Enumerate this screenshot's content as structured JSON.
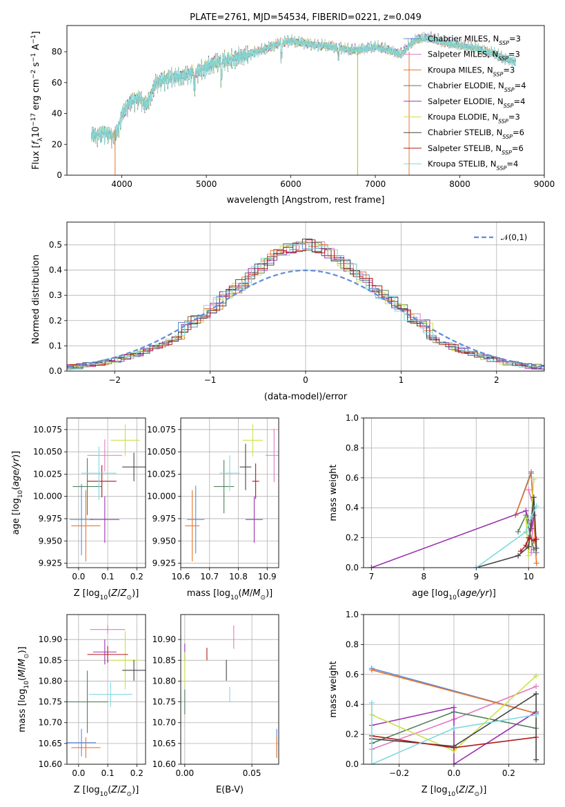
{
  "chart_data": [
    {
      "id": "spectrum",
      "type": "line",
      "title": "PLATE=2761, MJD=54534, FIBERID=0221, z=0.049",
      "xlabel": "wavelength [Angstrom, rest frame]",
      "ylabel": "Flux [f_λ10^-17 erg cm^-2 s^-1 A^-1]",
      "xlim": [
        3350,
        9000
      ],
      "ylim": [
        0,
        97
      ],
      "xticks": [
        4000,
        5000,
        6000,
        7000,
        8000,
        9000
      ],
      "yticks": [
        0,
        20,
        40,
        60,
        80
      ],
      "grid": false,
      "legend_position": "top-right",
      "continuum": {
        "x": [
          3640,
          3700,
          3800,
          3900,
          3960,
          4000,
          4100,
          4200,
          4300,
          4400,
          4500,
          4600,
          4700,
          4800,
          4900,
          5000,
          5100,
          5200,
          5300,
          5400,
          5500,
          5600,
          5700,
          5800,
          5900,
          6000,
          6100,
          6200,
          6300,
          6400,
          6500,
          6600,
          6700,
          6800,
          6900,
          7000,
          7100,
          7200,
          7300,
          7400,
          7500,
          7600,
          7700,
          7800,
          7900,
          8000,
          8100,
          8200,
          8300,
          8400,
          8500,
          8600,
          8660
        ],
        "y": [
          27,
          26,
          28,
          25,
          30,
          40,
          48,
          50,
          46,
          60,
          62,
          64,
          64,
          66,
          67,
          70,
          73,
          74,
          75,
          77,
          78,
          80,
          82,
          84,
          86,
          87,
          86,
          85,
          84,
          84,
          83,
          82,
          81,
          81,
          82,
          83,
          82,
          80,
          78,
          84,
          88,
          89,
          88,
          86,
          85,
          84,
          83,
          82,
          80,
          79,
          76,
          74,
          73
        ]
      },
      "series": [
        {
          "name": "Chabrier MILES, N_SSP=3",
          "color": "#5b8bd9"
        },
        {
          "name": "Salpeter MILES, N_SSP=3",
          "color": "#e377c2"
        },
        {
          "name": "Kroupa MILES, N_SSP=3",
          "color": "#e8742b"
        },
        {
          "name": "Chabrier ELODIE, N_SSP=4",
          "color": "#4f7f5a"
        },
        {
          "name": "Salpeter ELODIE, N_SSP=4",
          "color": "#9b30b0"
        },
        {
          "name": "Kroupa ELODIE, N_SSP=3",
          "color": "#cbe24a"
        },
        {
          "name": "Chabrier STELIB, N_SSP=6",
          "color": "#444444"
        },
        {
          "name": "Salpeter STELIB, N_SSP=6",
          "color": "#b01818"
        },
        {
          "name": "Kroupa STELIB, N_SSP=4",
          "color": "#7fd9df"
        }
      ]
    },
    {
      "id": "residuals",
      "type": "step",
      "xlabel": "(data-model)/error",
      "ylabel": "Normed distribution",
      "xlim": [
        -2.5,
        2.5
      ],
      "ylim": [
        0,
        0.59
      ],
      "xticks": [
        -2,
        -1,
        0,
        1,
        2
      ],
      "yticks": [
        0.0,
        0.1,
        0.2,
        0.3,
        0.4,
        0.5
      ],
      "grid": true,
      "legend_position": "top-right",
      "reference_label": "𝒩(0,1)",
      "reference_color": "#5b8bd9"
    },
    {
      "id": "age_vs_Z",
      "type": "errorbar",
      "xlabel": "Z [log10(Z/Z☉)]",
      "ylabel": "age  [log10(age/yr)]",
      "xlim": [
        -0.04,
        0.23
      ],
      "ylim": [
        9.92,
        10.088
      ],
      "xticks": [
        0.0,
        0.1,
        0.2
      ],
      "yticks": [
        9.925,
        9.95,
        9.975,
        10.0,
        10.025,
        10.05,
        10.075
      ],
      "grid": true,
      "points": [
        {
          "x": 0.01,
          "xerr": 0.04,
          "y": 9.974,
          "yerr": 0.04,
          "color": "#5b8bd9"
        },
        {
          "x": 0.09,
          "xerr": 0.06,
          "y": 10.046,
          "yerr": 0.018,
          "color": "#e377c2"
        },
        {
          "x": 0.025,
          "xerr": 0.05,
          "y": 9.967,
          "yerr": 0.04,
          "color": "#e8742b"
        },
        {
          "x": 0.03,
          "xerr": 0.05,
          "y": 10.011,
          "yerr": 0.032,
          "color": "#4f7f5a"
        },
        {
          "x": 0.09,
          "xerr": 0.05,
          "y": 9.974,
          "yerr": 0.026,
          "color": "#9b30b0"
        },
        {
          "x": 0.16,
          "xerr": 0.05,
          "y": 10.063,
          "yerr": 0.018,
          "color": "#cbe24a"
        },
        {
          "x": 0.19,
          "xerr": 0.04,
          "y": 10.033,
          "yerr": 0.016,
          "color": "#444444"
        },
        {
          "x": 0.08,
          "xerr": 0.05,
          "y": 10.017,
          "yerr": 0.018,
          "color": "#b01818"
        },
        {
          "x": 0.07,
          "xerr": 0.06,
          "y": 10.026,
          "yerr": 0.03,
          "color": "#7fd9df"
        }
      ]
    },
    {
      "id": "age_vs_mass",
      "type": "errorbar",
      "xlabel": "mass [log10(M/M☉)]",
      "ylabel": "",
      "xlim": [
        10.6,
        10.94
      ],
      "ylim": [
        9.92,
        10.088
      ],
      "xticks": [
        10.6,
        10.7,
        10.8,
        10.9
      ],
      "yticks": [
        9.925,
        9.95,
        9.975,
        10.0,
        10.025,
        10.05,
        10.075
      ],
      "grid": true,
      "points": [
        {
          "x": 10.652,
          "xerr": 0.03,
          "y": 9.974,
          "yerr": 0.038,
          "color": "#5b8bd9"
        },
        {
          "x": 10.924,
          "xerr": 0.03,
          "y": 10.046,
          "yerr": 0.03,
          "color": "#e377c2"
        },
        {
          "x": 10.64,
          "xerr": 0.025,
          "y": 9.967,
          "yerr": 0.04,
          "color": "#e8742b"
        },
        {
          "x": 10.75,
          "xerr": 0.035,
          "y": 10.011,
          "yerr": 0.03,
          "color": "#4f7f5a"
        },
        {
          "x": 10.855,
          "xerr": 0.03,
          "y": 9.974,
          "yerr": 0.026,
          "color": "#9b30b0"
        },
        {
          "x": 10.85,
          "xerr": 0.035,
          "y": 10.063,
          "yerr": 0.018,
          "color": "#cbe24a"
        },
        {
          "x": 10.825,
          "xerr": 0.02,
          "y": 10.033,
          "yerr": 0.026,
          "color": "#444444"
        },
        {
          "x": 10.86,
          "xerr": 0.012,
          "y": 10.017,
          "yerr": 0.02,
          "color": "#b01818"
        },
        {
          "x": 10.77,
          "xerr": 0.035,
          "y": 10.026,
          "yerr": 0.02,
          "color": "#7fd9df"
        }
      ]
    },
    {
      "id": "massweight_vs_age",
      "type": "line",
      "xlabel": "age  [log10(age/yr)]",
      "ylabel": "mass weight",
      "xlim": [
        6.85,
        10.3
      ],
      "ylim": [
        0.0,
        1.0
      ],
      "xticks": [
        7,
        8,
        9,
        10
      ],
      "yticks": [
        0.0,
        0.2,
        0.4,
        0.6,
        0.8,
        1.0
      ],
      "grid": true,
      "series": [
        {
          "color": "#5b8bd9",
          "x": [
            9.75,
            10.05,
            10.1,
            10.15
          ],
          "y": [
            0.35,
            0.64,
            0.35,
            0.1
          ]
        },
        {
          "color": "#e377c2",
          "x": [
            10.0,
            10.1,
            10.05
          ],
          "y": [
            0.52,
            0.4,
            0.1
          ]
        },
        {
          "color": "#e8742b",
          "x": [
            9.75,
            10.05,
            10.15
          ],
          "y": [
            0.35,
            0.63,
            0.03
          ]
        },
        {
          "color": "#4f7f5a",
          "x": [
            9.8,
            9.95,
            10.1
          ],
          "y": [
            0.24,
            0.35,
            0.12
          ]
        },
        {
          "color": "#9b30b0",
          "x": [
            7.0,
            9.95,
            10.05,
            10.1
          ],
          "y": [
            0.0,
            0.38,
            0.26,
            0.35
          ]
        },
        {
          "color": "#cbe24a",
          "x": [
            9.95,
            10.0,
            10.1
          ],
          "y": [
            0.33,
            0.08,
            0.59
          ]
        },
        {
          "color": "#444444",
          "x": [
            9.0,
            9.8,
            10.0,
            10.1,
            10.15
          ],
          "y": [
            0.0,
            0.08,
            0.14,
            0.47,
            0.13
          ]
        },
        {
          "color": "#b01818",
          "x": [
            9.85,
            9.95,
            10.0,
            10.1,
            10.15
          ],
          "y": [
            0.11,
            0.15,
            0.2,
            0.18,
            0.19
          ]
        },
        {
          "color": "#7fd9df",
          "x": [
            9.0,
            9.95,
            10.05,
            10.15
          ],
          "y": [
            0.0,
            0.24,
            0.34,
            0.41
          ]
        }
      ]
    },
    {
      "id": "mass_vs_Z",
      "type": "errorbar",
      "xlabel": "Z [log10(Z/Z☉)]",
      "ylabel": "mass [log10(M/M☉)]",
      "xlim": [
        -0.04,
        0.23
      ],
      "ylim": [
        10.6,
        10.96
      ],
      "xticks": [
        0.0,
        0.1,
        0.2
      ],
      "yticks": [
        10.6,
        10.65,
        10.7,
        10.75,
        10.8,
        10.85,
        10.9
      ],
      "grid": true,
      "points": [
        {
          "x": 0.01,
          "xerr": 0.05,
          "y": 10.652,
          "yerr": 0.033,
          "color": "#5b8bd9"
        },
        {
          "x": 0.1,
          "xerr": 0.06,
          "y": 10.924,
          "yerr": 0.01,
          "color": "#e377c2"
        },
        {
          "x": 0.025,
          "xerr": 0.05,
          "y": 10.64,
          "yerr": 0.025,
          "color": "#e8742b"
        },
        {
          "x": 0.03,
          "xerr": 0.07,
          "y": 10.75,
          "yerr": 0.075,
          "color": "#4f7f5a"
        },
        {
          "x": 0.09,
          "xerr": 0.04,
          "y": 10.87,
          "yerr": 0.03,
          "color": "#9b30b0"
        },
        {
          "x": 0.16,
          "xerr": 0.05,
          "y": 10.85,
          "yerr": 0.07,
          "color": "#cbe24a"
        },
        {
          "x": 0.19,
          "xerr": 0.04,
          "y": 10.826,
          "yerr": 0.025,
          "color": "#444444"
        },
        {
          "x": 0.1,
          "xerr": 0.07,
          "y": 10.864,
          "yerr": 0.02,
          "color": "#b01818"
        },
        {
          "x": 0.11,
          "xerr": 0.075,
          "y": 10.768,
          "yerr": 0.03,
          "color": "#7fd9df"
        }
      ]
    },
    {
      "id": "mass_vs_ebv",
      "type": "errorbar",
      "xlabel": "E(B-V)",
      "ylabel": "",
      "xlim": [
        -0.003,
        0.07
      ],
      "ylim": [
        10.6,
        10.96
      ],
      "xticks": [
        0.0,
        0.05
      ],
      "yticks": [
        10.6,
        10.65,
        10.7,
        10.75,
        10.8,
        10.85,
        10.9
      ],
      "grid": true,
      "points": [
        {
          "x": 0.0685,
          "xerr": 0,
          "y": 10.652,
          "yerr": 0.033,
          "color": "#5b8bd9"
        },
        {
          "x": 0.0365,
          "xerr": 0,
          "y": 10.906,
          "yerr": 0.028,
          "color": "#e377c2"
        },
        {
          "x": 0.0685,
          "xerr": 0,
          "y": 10.64,
          "yerr": 0.025,
          "color": "#e8742b"
        },
        {
          "x": 0.0,
          "xerr": 0,
          "y": 10.75,
          "yerr": 0.03,
          "color": "#4f7f5a"
        },
        {
          "x": 0.0,
          "xerr": 0,
          "y": 10.87,
          "yerr": 0.02,
          "color": "#9b30b0"
        },
        {
          "x": 0.0,
          "xerr": 0,
          "y": 10.83,
          "yerr": 0.04,
          "color": "#cbe24a"
        },
        {
          "x": 0.031,
          "xerr": 0,
          "y": 10.826,
          "yerr": 0.025,
          "color": "#444444"
        },
        {
          "x": 0.0165,
          "xerr": 0,
          "y": 10.865,
          "yerr": 0.015,
          "color": "#b01818"
        },
        {
          "x": 0.0335,
          "xerr": 0,
          "y": 10.768,
          "yerr": 0.018,
          "color": "#7fd9df"
        }
      ]
    },
    {
      "id": "massweight_vs_Z",
      "type": "line",
      "xlabel": "Z [log10(Z/Z☉)]",
      "ylabel": "mass weight",
      "xlim": [
        -0.33,
        0.33
      ],
      "ylim": [
        0.0,
        1.0
      ],
      "xticks": [
        -0.2,
        0.0,
        0.2
      ],
      "yticks": [
        0.0,
        0.2,
        0.4,
        0.6,
        0.8,
        1.0
      ],
      "grid": true,
      "series": [
        {
          "color": "#5b8bd9",
          "x": [
            -0.3,
            0.3
          ],
          "y": [
            0.64,
            0.34
          ]
        },
        {
          "color": "#e377c2",
          "x": [
            -0.3,
            0.0,
            0.3
          ],
          "y": [
            0.1,
            0.3,
            0.52
          ]
        },
        {
          "color": "#e8742b",
          "x": [
            -0.3,
            0.3
          ],
          "y": [
            0.63,
            0.34
          ]
        },
        {
          "color": "#4f7f5a",
          "x": [
            -0.3,
            0.0,
            0.3
          ],
          "y": [
            0.14,
            0.35,
            0.24
          ]
        },
        {
          "color": "#9b30b0",
          "x": [
            -0.3,
            0.0,
            0.0,
            0.3
          ],
          "y": [
            0.26,
            0.38,
            0.0,
            0.35
          ]
        },
        {
          "color": "#cbe24a",
          "x": [
            -0.3,
            0.0,
            0.3
          ],
          "y": [
            0.33,
            0.09,
            0.59
          ]
        },
        {
          "color": "#444444",
          "x": [
            -0.3,
            0.0,
            0.3,
            0.3
          ],
          "y": [
            0.17,
            0.12,
            0.47,
            0.03
          ]
        },
        {
          "color": "#b01818",
          "x": [
            -0.3,
            0.0,
            0.3
          ],
          "y": [
            0.19,
            0.11,
            0.18
          ]
        },
        {
          "color": "#7fd9df",
          "x": [
            -0.3,
            -0.3,
            0.0,
            0.3
          ],
          "y": [
            0.41,
            0.0,
            0.24,
            0.33
          ]
        }
      ]
    }
  ]
}
